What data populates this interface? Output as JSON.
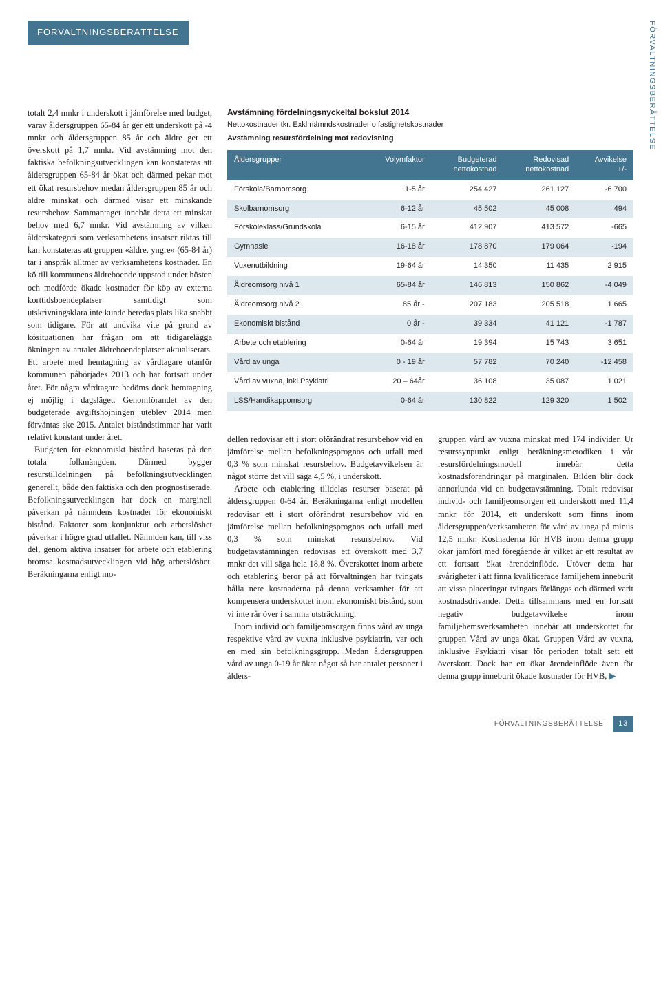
{
  "header": {
    "title": "FÖRVALTNINGSBERÄTTELSE"
  },
  "sideTab": "FÖRVALTNINGSBERÄTTELSE",
  "leftCol": {
    "p1": "totalt 2,4 mnkr i underskott i jämförelse med budget, varav åldersgruppen 65-84 år ger ett underskott på -4 mnkr och åldersgruppen 85 år och äldre ger ett överskott på 1,7 mnkr. Vid avstämning mot den faktiska befolkningsutvecklingen kan konstateras att åldersgruppen 65-84 år ökat och därmed pekar mot ett ökat resursbehov medan åldersgruppen 85 år och äldre minskat och därmed visar ett minskande resursbehov. Sammantaget innebär detta ett minskat behov med 6,7 mnkr. Vid avstämning av vilken ålderskategori som verksamhetens insatser riktas till kan konstateras att gruppen «äldre, yngre» (65-84 år) tar i anspråk alltmer av verksamhetens kostnader. En kö till kommunens äldreboende uppstod under hösten och medförde ökade kostnader för köp av externa korttidsboendeplatser samtidigt som utskrivningsklara inte kunde beredas plats lika snabbt som tidigare. För att undvika vite på grund av kösituationen har frågan om att tidigarelägga ökningen av antalet äldreboendeplatser aktualiserats. Ett arbete med hemtagning av vårdtagare utanför kommunen påbörjades 2013 och har fortsatt under året. För några vårdtagare bedöms dock hemtagning ej möjlig i dagsläget. Genomförandet av den budgeterade avgiftshöjningen uteblev 2014 men förväntas ske 2015. Antalet biståndstimmar har varit relativt konstant under året.",
    "p2": "Budgeten för ekonomiskt bistånd baseras på den totala folkmängden. Därmed bygger resurstilldelningen på befolkningsutvecklingen generellt, både den faktiska och den prognostiserade. Befolkningsutvecklingen har dock en marginell påverkan på nämndens kostnader för ekonomiskt bistånd. Faktorer som konjunktur och arbetslöshet påverkar i högre grad utfallet. Nämnden kan, till viss del, genom aktiva insatser för arbete och etablering bromsa kostnadsutvecklingen vid hög arbetslöshet. Beräkningarna enligt mo-"
  },
  "tableHeadings": {
    "h1": "Avstämning fördelningsnyckeltal bokslut 2014",
    "h2": "Nettokostnader tkr. Exkl nämndskostnader o fastighetskostnader",
    "h3": "Avstämning resursfördelning mot redovisning"
  },
  "table": {
    "headers": {
      "c1": "Åldersgrupper",
      "c2": "Volymfaktor",
      "c3a": "Budgeterad",
      "c3b": "nettokostnad",
      "c4a": "Redovisad",
      "c4b": "nettokostnad",
      "c5a": "Avvikelse",
      "c5b": "+/-"
    },
    "rows": [
      {
        "c1": "Förskola/Barnomsorg",
        "c2": "1-5 år",
        "c3": "254 427",
        "c4": "261 127",
        "c5": "-6 700"
      },
      {
        "c1": "Skolbarnomsorg",
        "c2": "6-12 år",
        "c3": "45 502",
        "c4": "45 008",
        "c5": "494"
      },
      {
        "c1": "Förskoleklass/Grundskola",
        "c2": "6-15 år",
        "c3": "412 907",
        "c4": "413 572",
        "c5": "-665"
      },
      {
        "c1": "Gymnasie",
        "c2": "16-18 år",
        "c3": "178 870",
        "c4": "179 064",
        "c5": "-194"
      },
      {
        "c1": "Vuxenutbildning",
        "c2": "19-64 år",
        "c3": "14 350",
        "c4": "11 435",
        "c5": "2 915"
      },
      {
        "c1": "Äldreomsorg nivå 1",
        "c2": "65-84 år",
        "c3": "146 813",
        "c4": "150 862",
        "c5": "-4 049"
      },
      {
        "c1": "Äldreomsorg nivå 2",
        "c2": "85 år -",
        "c3": "207 183",
        "c4": "205 518",
        "c5": "1 665"
      },
      {
        "c1": "Ekonomiskt bistånd",
        "c2": "0 år -",
        "c3": "39 334",
        "c4": "41 121",
        "c5": "-1 787"
      },
      {
        "c1": "Arbete och etablering",
        "c2": "0-64 år",
        "c3": "19 394",
        "c4": "15 743",
        "c5": "3 651"
      },
      {
        "c1": "Vård av unga",
        "c2": "0 - 19 år",
        "c3": "57 782",
        "c4": "70 240",
        "c5": "-12 458"
      },
      {
        "c1": "Vård av vuxna, inkl Psykiatri",
        "c2": "20 – 64år",
        "c3": "36 108",
        "c4": "35 087",
        "c5": "1 021"
      },
      {
        "c1": "LSS/Handikappomsorg",
        "c2": "0-64 år",
        "c3": "130 822",
        "c4": "129 320",
        "c5": "1 502"
      }
    ]
  },
  "below": {
    "c1p1": "dellen redovisar ett i stort oförändrat resursbehov vid en jämförelse mellan befolkningsprognos och utfall med 0,3 % som minskat resursbehov. Budgetavvikelsen är något större det vill säga 4,5 %, i underskott.",
    "c1p2": "Arbete och etablering tilldelas resurser baserat på åldersgruppen 0-64 år. Beräkningarna enligt modellen redovisar ett i stort oförändrat resursbehov vid en jämförelse mellan befolkningsprognos och utfall med 0,3 % som minskat resursbehov. Vid budgetavstämningen redovisas ett överskott med 3,7 mnkr det vill säga hela 18,8 %. Överskottet inom arbete och etablering beror på att förvaltningen har tvingats hålla nere kostnaderna på denna verksamhet för att kompensera underskottet inom ekonomiskt bistånd, som vi inte rår över i samma utsträckning.",
    "c1p3": "Inom individ och familjeomsorgen finns vård av unga respektive vård av vuxna inklusive psykiatrin, var och en med sin befolkningsgrupp. Medan åldersgruppen vård av unga 0-19 år ökat något så har antalet personer i ålders-",
    "c2p1": "gruppen vård av vuxna minskat med 174 individer. Ur resurssynpunkt enligt beräkningsmetodiken i vår resursfördelningsmodell innebär detta kostnadsförändringar på marginalen. Bilden blir dock annorlunda vid en budgetavstämning. Totalt redovisar individ- och familjeomsorgen ett underskott med 11,4 mnkr för 2014, ett underskott som finns inom åldersgruppen/verksamheten för vård av unga på minus 12,5 mnkr. Kostnaderna för HVB inom denna grupp ökar jämfört med föregående år vilket är ett resultat av ett fortsatt ökat ärendeinflöde. Utöver detta har svårigheter i att finna kvalificerade familjehem inneburit att vissa placeringar tvingats förlängas och därmed varit kostnadsdrivande. Detta tillsammans med en fortsatt negativ budgetavvikelse inom familjehemsverksamheten innebär att underskottet för gruppen Vård av unga ökat. Gruppen Vård av vuxna, inklusive Psykiatri visar för perioden totalt sett ett överskott. Dock har ett ökat ärendeinflöde även för denna grupp inneburit ökade kostnader för HVB,"
  },
  "footer": {
    "label": "FÖRVALTNINGSBERÄTTELSE",
    "page": "13"
  }
}
